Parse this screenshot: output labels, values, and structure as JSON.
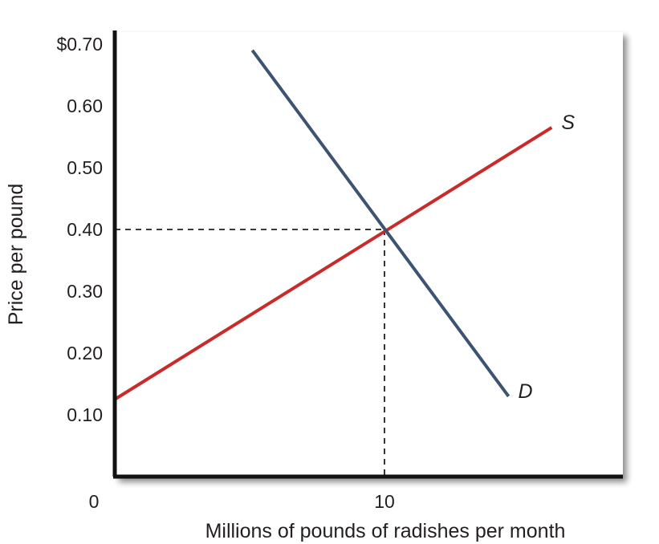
{
  "chart_data": {
    "type": "line",
    "xlabel": "Millions of pounds of radishes per month",
    "ylabel": "Price per pound",
    "xlim": [
      0,
      19
    ],
    "ylim": [
      0,
      0.7
    ],
    "x_ticks": [
      {
        "value": 0,
        "label": "0"
      },
      {
        "value": 10,
        "label": "10"
      }
    ],
    "y_ticks": [
      {
        "value": 0.1,
        "label": "0.10"
      },
      {
        "value": 0.2,
        "label": "0.20"
      },
      {
        "value": 0.3,
        "label": "0.30"
      },
      {
        "value": 0.4,
        "label": "0.40"
      },
      {
        "value": 0.5,
        "label": "0.50"
      },
      {
        "value": 0.6,
        "label": "0.60"
      },
      {
        "value": 0.7,
        "label": "$0.70"
      }
    ],
    "series": [
      {
        "name": "S",
        "color": "#c92a2a",
        "points": [
          [
            0,
            0.125
          ],
          [
            16.2,
            0.565
          ]
        ]
      },
      {
        "name": "D",
        "color": "#3c5372",
        "points": [
          [
            5.1,
            0.69
          ],
          [
            14.6,
            0.13
          ]
        ]
      }
    ],
    "equilibrium": {
      "x": 10,
      "y": 0.4
    },
    "grid": false,
    "legend": "none"
  }
}
